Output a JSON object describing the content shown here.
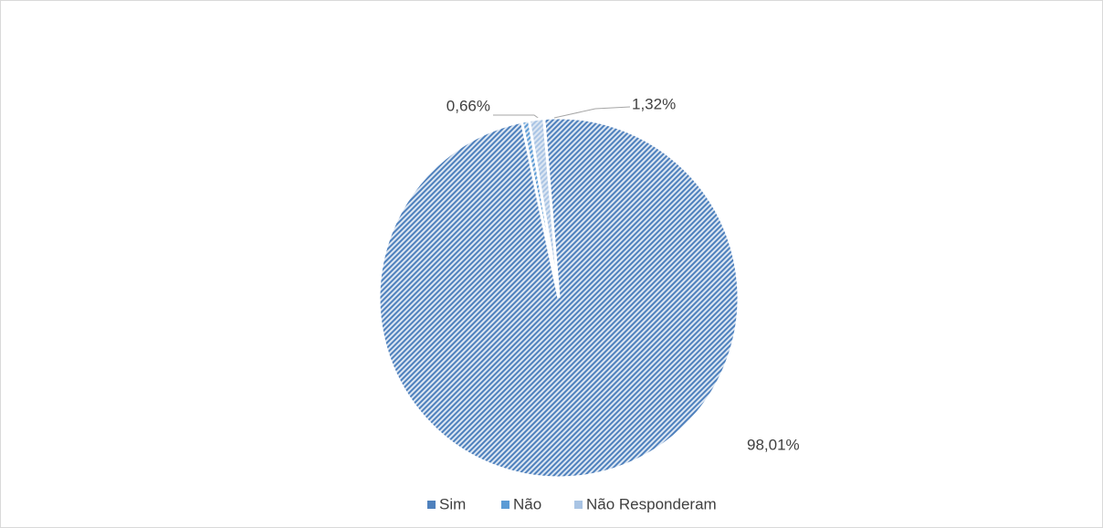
{
  "chart_data": {
    "type": "pie",
    "categories": [
      "Sim",
      "Não",
      "Não Responderam"
    ],
    "values": [
      98.01,
      0.66,
      1.32
    ],
    "value_labels": [
      "98,01%",
      "0,66%",
      "1,32%"
    ],
    "colors": [
      "#4f81bd",
      "#5b9bd5",
      "#a9c4e4"
    ],
    "legend": "bottom"
  }
}
